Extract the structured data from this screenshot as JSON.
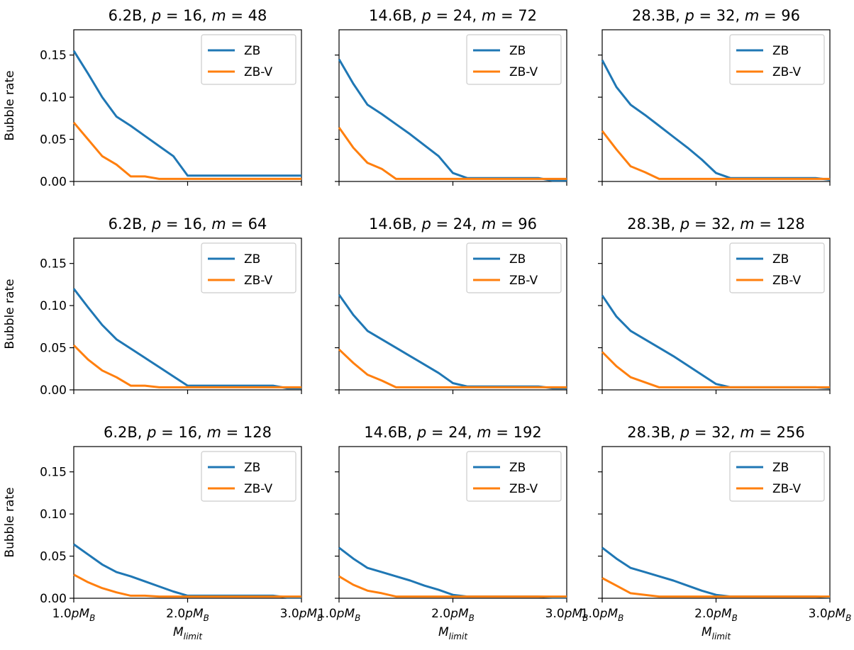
{
  "colors": {
    "zb": "#1f77b4",
    "zbv": "#ff7f0e",
    "axis": "#000000",
    "legend_border": "#cccccc"
  },
  "chart_data": [
    {
      "type": "line",
      "row": 0,
      "col": 0,
      "title": "6.2B, p = 16, m = 48",
      "title_parts": {
        "size": "6.2B, ",
        "p": "16",
        "m": "48"
      },
      "x": [
        1.0,
        1.125,
        1.25,
        1.375,
        1.5,
        1.625,
        1.75,
        1.875,
        2.0,
        2.125,
        2.25,
        2.375,
        2.5,
        2.625,
        2.75,
        2.875,
        3.0
      ],
      "series": [
        {
          "name": "ZB",
          "values": [
            0.155,
            0.128,
            0.1,
            0.077,
            0.066,
            0.054,
            0.042,
            0.03,
            0.007,
            0.007,
            0.007,
            0.007,
            0.007,
            0.007,
            0.007,
            0.007,
            0.007
          ]
        },
        {
          "name": "ZB-V",
          "values": [
            0.07,
            0.05,
            0.03,
            0.02,
            0.006,
            0.006,
            0.003,
            0.003,
            0.003,
            0.003,
            0.003,
            0.003,
            0.003,
            0.003,
            0.003,
            0.003,
            0.003
          ]
        }
      ],
      "xlabel": "",
      "ylabel": "Bubble rate",
      "xlim": [
        1.0,
        3.0
      ],
      "ylim": [
        0.0,
        0.18
      ],
      "xticks": [
        "1.0pM_B",
        "2.0pM_B",
        "3.0pM_B"
      ],
      "yticks": [
        "0.00",
        "0.05",
        "0.10",
        "0.15"
      ]
    },
    {
      "type": "line",
      "row": 0,
      "col": 1,
      "title": "14.6B, p = 24, m = 72",
      "title_parts": {
        "size": "14.6B, ",
        "p": "24",
        "m": "72"
      },
      "x": [
        1.0,
        1.125,
        1.25,
        1.375,
        1.5,
        1.625,
        1.75,
        1.875,
        2.0,
        2.125,
        2.25,
        2.375,
        2.5,
        2.625,
        2.75,
        2.875,
        3.0
      ],
      "series": [
        {
          "name": "ZB",
          "values": [
            0.145,
            0.116,
            0.091,
            0.08,
            0.068,
            0.056,
            0.043,
            0.03,
            0.01,
            0.004,
            0.004,
            0.004,
            0.004,
            0.004,
            0.004,
            0.001,
            0.001
          ]
        },
        {
          "name": "ZB-V",
          "values": [
            0.064,
            0.04,
            0.022,
            0.015,
            0.003,
            0.003,
            0.003,
            0.003,
            0.003,
            0.003,
            0.003,
            0.003,
            0.003,
            0.003,
            0.003,
            0.003,
            0.003
          ]
        }
      ],
      "xlabel": "",
      "ylabel": "",
      "xlim": [
        1.0,
        3.0
      ],
      "ylim": [
        0.0,
        0.18
      ],
      "xticks": [
        "1.0pM_B",
        "2.0pM_B",
        "3.0pM_B"
      ],
      "yticks": []
    },
    {
      "type": "line",
      "row": 0,
      "col": 2,
      "title": "28.3B, p = 32, m = 96",
      "title_parts": {
        "size": "28.3B, ",
        "p": "32",
        "m": "96"
      },
      "x": [
        1.0,
        1.125,
        1.25,
        1.375,
        1.5,
        1.625,
        1.75,
        1.875,
        2.0,
        2.125,
        2.25,
        2.375,
        2.5,
        2.625,
        2.75,
        2.875,
        3.0
      ],
      "series": [
        {
          "name": "ZB",
          "values": [
            0.144,
            0.112,
            0.091,
            0.079,
            0.066,
            0.053,
            0.04,
            0.026,
            0.01,
            0.004,
            0.004,
            0.004,
            0.004,
            0.004,
            0.004,
            0.004,
            0.002
          ]
        },
        {
          "name": "ZB-V",
          "values": [
            0.06,
            0.038,
            0.018,
            0.011,
            0.003,
            0.003,
            0.003,
            0.003,
            0.003,
            0.003,
            0.003,
            0.003,
            0.003,
            0.003,
            0.003,
            0.003,
            0.003
          ]
        }
      ],
      "xlabel": "",
      "ylabel": "",
      "xlim": [
        1.0,
        3.0
      ],
      "ylim": [
        0.0,
        0.18
      ],
      "xticks": [
        "1.0pM_B",
        "2.0pM_B",
        "3.0pM_B"
      ],
      "yticks": []
    },
    {
      "type": "line",
      "row": 1,
      "col": 0,
      "title": "6.2B, p = 16, m = 64",
      "title_parts": {
        "size": "6.2B, ",
        "p": "16",
        "m": "64"
      },
      "x": [
        1.0,
        1.125,
        1.25,
        1.375,
        1.5,
        1.625,
        1.75,
        1.875,
        2.0,
        2.125,
        2.25,
        2.375,
        2.5,
        2.625,
        2.75,
        2.875,
        3.0
      ],
      "series": [
        {
          "name": "ZB",
          "values": [
            0.12,
            0.098,
            0.077,
            0.06,
            0.049,
            0.038,
            0.027,
            0.016,
            0.005,
            0.005,
            0.005,
            0.005,
            0.005,
            0.005,
            0.005,
            0.002,
            0.002
          ]
        },
        {
          "name": "ZB-V",
          "values": [
            0.053,
            0.036,
            0.023,
            0.015,
            0.005,
            0.005,
            0.003,
            0.003,
            0.003,
            0.003,
            0.003,
            0.003,
            0.003,
            0.003,
            0.003,
            0.003,
            0.003
          ]
        }
      ],
      "xlabel": "",
      "ylabel": "Bubble rate",
      "xlim": [
        1.0,
        3.0
      ],
      "ylim": [
        0.0,
        0.18
      ],
      "xticks": [
        "1.0pM_B",
        "2.0pM_B",
        "3.0pM_B"
      ],
      "yticks": [
        "0.00",
        "0.05",
        "0.10",
        "0.15"
      ]
    },
    {
      "type": "line",
      "row": 1,
      "col": 1,
      "title": "14.6B, p = 24, m = 96",
      "title_parts": {
        "size": "14.6B, ",
        "p": "24",
        "m": "96"
      },
      "x": [
        1.0,
        1.125,
        1.25,
        1.375,
        1.5,
        1.625,
        1.75,
        1.875,
        2.0,
        2.125,
        2.25,
        2.375,
        2.5,
        2.625,
        2.75,
        2.875,
        3.0
      ],
      "series": [
        {
          "name": "ZB",
          "values": [
            0.113,
            0.089,
            0.07,
            0.06,
            0.05,
            0.04,
            0.03,
            0.02,
            0.008,
            0.004,
            0.004,
            0.004,
            0.004,
            0.004,
            0.004,
            0.002,
            0.002
          ]
        },
        {
          "name": "ZB-V",
          "values": [
            0.048,
            0.032,
            0.018,
            0.011,
            0.003,
            0.003,
            0.003,
            0.003,
            0.003,
            0.003,
            0.003,
            0.003,
            0.003,
            0.003,
            0.003,
            0.003,
            0.003
          ]
        }
      ],
      "xlabel": "",
      "ylabel": "",
      "xlim": [
        1.0,
        3.0
      ],
      "ylim": [
        0.0,
        0.18
      ],
      "xticks": [
        "1.0pM_B",
        "2.0pM_B",
        "3.0pM_B"
      ],
      "yticks": []
    },
    {
      "type": "line",
      "row": 1,
      "col": 2,
      "title": "28.3B, p = 32, m = 128",
      "title_parts": {
        "size": "28.3B, ",
        "p": "32",
        "m": "128"
      },
      "x": [
        1.0,
        1.125,
        1.25,
        1.375,
        1.5,
        1.625,
        1.75,
        1.875,
        2.0,
        2.125,
        2.25,
        2.375,
        2.5,
        2.625,
        2.75,
        2.875,
        3.0
      ],
      "series": [
        {
          "name": "ZB",
          "values": [
            0.112,
            0.087,
            0.07,
            0.06,
            0.05,
            0.04,
            0.029,
            0.018,
            0.007,
            0.003,
            0.003,
            0.003,
            0.003,
            0.003,
            0.003,
            0.003,
            0.002
          ]
        },
        {
          "name": "ZB-V",
          "values": [
            0.045,
            0.028,
            0.015,
            0.009,
            0.003,
            0.003,
            0.003,
            0.003,
            0.003,
            0.003,
            0.003,
            0.003,
            0.003,
            0.003,
            0.003,
            0.003,
            0.003
          ]
        }
      ],
      "xlabel": "",
      "ylabel": "",
      "xlim": [
        1.0,
        3.0
      ],
      "ylim": [
        0.0,
        0.18
      ],
      "xticks": [
        "1.0pM_B",
        "2.0pM_B",
        "3.0pM_B"
      ],
      "yticks": []
    },
    {
      "type": "line",
      "row": 2,
      "col": 0,
      "title": "6.2B, p = 16, m = 128",
      "title_parts": {
        "size": "6.2B, ",
        "p": "16",
        "m": "128"
      },
      "x": [
        1.0,
        1.125,
        1.25,
        1.375,
        1.5,
        1.625,
        1.75,
        1.875,
        2.0,
        2.125,
        2.25,
        2.375,
        2.5,
        2.625,
        2.75,
        2.875,
        3.0
      ],
      "series": [
        {
          "name": "ZB",
          "values": [
            0.064,
            0.052,
            0.04,
            0.031,
            0.026,
            0.02,
            0.014,
            0.008,
            0.003,
            0.003,
            0.003,
            0.003,
            0.003,
            0.003,
            0.003,
            0.001,
            0.001
          ]
        },
        {
          "name": "ZB-V",
          "values": [
            0.028,
            0.019,
            0.012,
            0.007,
            0.003,
            0.003,
            0.002,
            0.002,
            0.002,
            0.002,
            0.002,
            0.002,
            0.002,
            0.002,
            0.002,
            0.002,
            0.002
          ]
        }
      ],
      "xlabel": "M_limit",
      "ylabel": "Bubble rate",
      "xlim": [
        1.0,
        3.0
      ],
      "ylim": [
        0.0,
        0.18
      ],
      "xticks": [
        "1.0pM_B",
        "2.0pM_B",
        "3.0pM_B"
      ],
      "yticks": [
        "0.00",
        "0.05",
        "0.10",
        "0.15"
      ]
    },
    {
      "type": "line",
      "row": 2,
      "col": 1,
      "title": "14.6B, p = 24, m = 192",
      "title_parts": {
        "size": "14.6B, ",
        "p": "24",
        "m": "192"
      },
      "x": [
        1.0,
        1.125,
        1.25,
        1.375,
        1.5,
        1.625,
        1.75,
        1.875,
        2.0,
        2.125,
        2.25,
        2.375,
        2.5,
        2.625,
        2.75,
        2.875,
        3.0
      ],
      "series": [
        {
          "name": "ZB",
          "values": [
            0.06,
            0.047,
            0.036,
            0.031,
            0.026,
            0.021,
            0.015,
            0.01,
            0.004,
            0.002,
            0.002,
            0.002,
            0.002,
            0.002,
            0.002,
            0.001,
            0.001
          ]
        },
        {
          "name": "ZB-V",
          "values": [
            0.026,
            0.016,
            0.009,
            0.006,
            0.002,
            0.002,
            0.002,
            0.002,
            0.002,
            0.002,
            0.002,
            0.002,
            0.002,
            0.002,
            0.002,
            0.002,
            0.002
          ]
        }
      ],
      "xlabel": "M_limit",
      "ylabel": "",
      "xlim": [
        1.0,
        3.0
      ],
      "ylim": [
        0.0,
        0.18
      ],
      "xticks": [
        "1.0pM_B",
        "2.0pM_B",
        "3.0pM_B"
      ],
      "yticks": []
    },
    {
      "type": "line",
      "row": 2,
      "col": 2,
      "title": "28.3B, p = 32, m = 256",
      "title_parts": {
        "size": "28.3B, ",
        "p": "32",
        "m": "256"
      },
      "x": [
        1.0,
        1.125,
        1.25,
        1.375,
        1.5,
        1.625,
        1.75,
        1.875,
        2.0,
        2.125,
        2.25,
        2.375,
        2.5,
        2.625,
        2.75,
        2.875,
        3.0
      ],
      "series": [
        {
          "name": "ZB",
          "values": [
            0.06,
            0.047,
            0.036,
            0.031,
            0.026,
            0.021,
            0.015,
            0.009,
            0.004,
            0.002,
            0.002,
            0.002,
            0.002,
            0.002,
            0.002,
            0.002,
            0.001
          ]
        },
        {
          "name": "ZB-V",
          "values": [
            0.024,
            0.015,
            0.006,
            0.004,
            0.002,
            0.002,
            0.002,
            0.002,
            0.002,
            0.002,
            0.002,
            0.002,
            0.002,
            0.002,
            0.002,
            0.002,
            0.002
          ]
        }
      ],
      "xlabel": "M_limit",
      "ylabel": "",
      "xlim": [
        1.0,
        3.0
      ],
      "ylim": [
        0.0,
        0.18
      ],
      "xticks": [
        "1.0pM_B",
        "2.0pM_B",
        "3.0pM_B"
      ],
      "yticks": []
    }
  ]
}
